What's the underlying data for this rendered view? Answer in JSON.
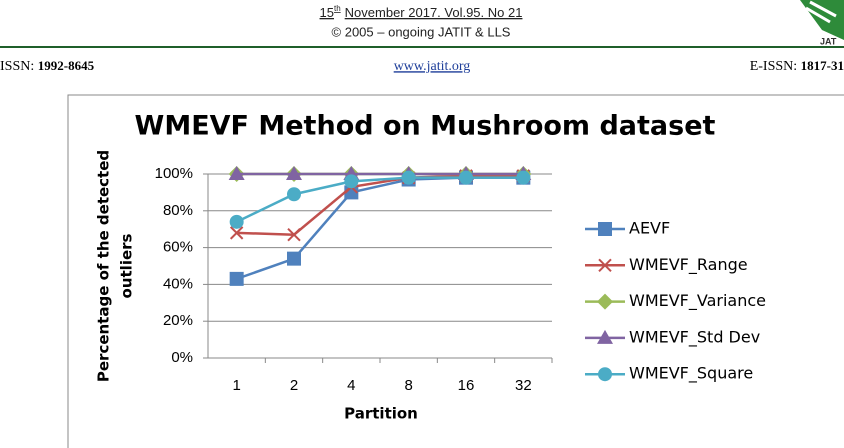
{
  "header": {
    "date_day": "15",
    "date_suffix": "th",
    "date_rest": "November 2017. Vol.95. No 21",
    "copyright": "© 2005 – ongoing  JATIT & LLS",
    "issn_label": "ISSN:",
    "issn": "1992-8645",
    "website": "www.jatit.org",
    "eissn_label": "E-ISSN:",
    "eissn": "1817-31"
  },
  "chart_data": {
    "type": "line",
    "title": "WMEVF Method on Mushroom  dataset",
    "x_label": "Partition",
    "y_label": [
      "Percentage of the detected",
      "outliers"
    ],
    "categories": [
      "1",
      "2",
      "4",
      "8",
      "16",
      "32"
    ],
    "series": [
      {
        "name": "AEVF",
        "color": "#4f81bd",
        "marker": "square",
        "values": [
          43,
          54,
          90,
          97,
          98,
          98
        ]
      },
      {
        "name": "WMEVF_Range",
        "color": "#c0504d",
        "marker": "x",
        "values": [
          68,
          67,
          93,
          98,
          99,
          99
        ]
      },
      {
        "name": "WMEVF_Variance",
        "color": "#9bbb59",
        "marker": "diamond",
        "values": [
          100,
          100,
          100,
          100,
          100,
          100
        ]
      },
      {
        "name": "WMEVF_Std Dev",
        "color": "#8064a2",
        "marker": "triangle",
        "values": [
          100,
          100,
          100,
          100,
          100,
          100
        ]
      },
      {
        "name": "WMEVF_Square",
        "color": "#4bacc6",
        "marker": "circle",
        "values": [
          74,
          89,
          96,
          98,
          98,
          98
        ]
      }
    ],
    "ylim": [
      0,
      100
    ],
    "yticks": [
      {
        "value": 0,
        "label": "0%"
      },
      {
        "value": 20,
        "label": "20%"
      },
      {
        "value": 40,
        "label": "40%"
      },
      {
        "value": 60,
        "label": "60%"
      },
      {
        "value": 80,
        "label": "80%"
      },
      {
        "value": 100,
        "label": "100%"
      }
    ],
    "grid": true,
    "legend": "right"
  }
}
